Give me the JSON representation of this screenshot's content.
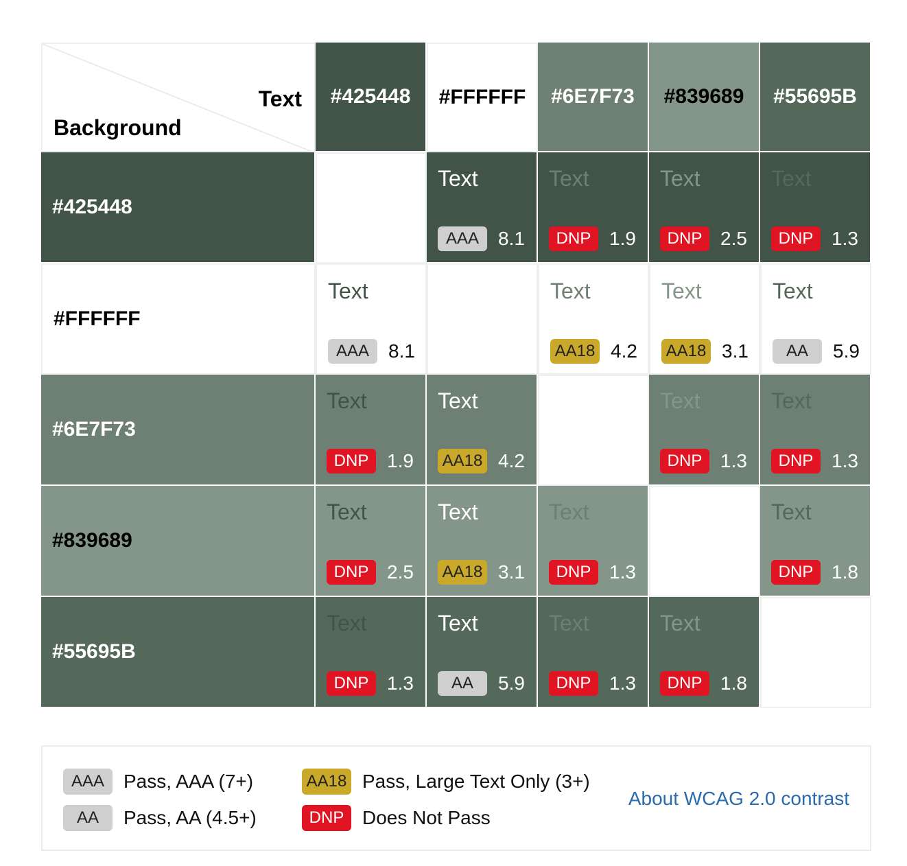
{
  "corner": {
    "text_label": "Text",
    "background_label": "Background"
  },
  "colors": [
    {
      "hex": "#425448",
      "label": "#425448"
    },
    {
      "hex": "#FFFFFF",
      "label": "#FFFFFF"
    },
    {
      "hex": "#6E7F73",
      "label": "#6E7F73"
    },
    {
      "hex": "#839689",
      "label": "#839689"
    },
    {
      "hex": "#55695B",
      "label": "#55695B"
    }
  ],
  "header_text_colors": [
    "#ffffff",
    "#000000",
    "#ffffff",
    "#000000",
    "#ffffff"
  ],
  "sample_text": "Text",
  "matrix": [
    [
      null,
      {
        "rating": "AAA",
        "ratio": "8.1"
      },
      {
        "rating": "DNP",
        "ratio": "1.9"
      },
      {
        "rating": "DNP",
        "ratio": "2.5"
      },
      {
        "rating": "DNP",
        "ratio": "1.3"
      }
    ],
    [
      {
        "rating": "AAA",
        "ratio": "8.1"
      },
      null,
      {
        "rating": "AA18",
        "ratio": "4.2"
      },
      {
        "rating": "AA18",
        "ratio": "3.1"
      },
      {
        "rating": "AA",
        "ratio": "5.9"
      }
    ],
    [
      {
        "rating": "DNP",
        "ratio": "1.9"
      },
      {
        "rating": "AA18",
        "ratio": "4.2"
      },
      null,
      {
        "rating": "DNP",
        "ratio": "1.3"
      },
      {
        "rating": "DNP",
        "ratio": "1.3"
      }
    ],
    [
      {
        "rating": "DNP",
        "ratio": "2.5"
      },
      {
        "rating": "AA18",
        "ratio": "3.1"
      },
      {
        "rating": "DNP",
        "ratio": "1.3"
      },
      null,
      {
        "rating": "DNP",
        "ratio": "1.8"
      }
    ],
    [
      {
        "rating": "DNP",
        "ratio": "1.3"
      },
      {
        "rating": "AA",
        "ratio": "5.9"
      },
      {
        "rating": "DNP",
        "ratio": "1.3"
      },
      {
        "rating": "DNP",
        "ratio": "1.8"
      },
      null
    ]
  ],
  "legend": {
    "items": [
      {
        "badge": "AAA",
        "text": "Pass, AAA (7+)"
      },
      {
        "badge": "AA",
        "text": "Pass, AA (4.5+)"
      },
      {
        "badge": "AA18",
        "text": "Pass, Large Text Only (3+)"
      },
      {
        "badge": "DNP",
        "text": "Does Not Pass"
      }
    ],
    "link": "About WCAG 2.0 contrast"
  },
  "badge_colors": {
    "AAA": "#cfcfcf",
    "AA": "#cfcfcf",
    "AA18": "#c9a82a",
    "DNP": "#e01422"
  }
}
